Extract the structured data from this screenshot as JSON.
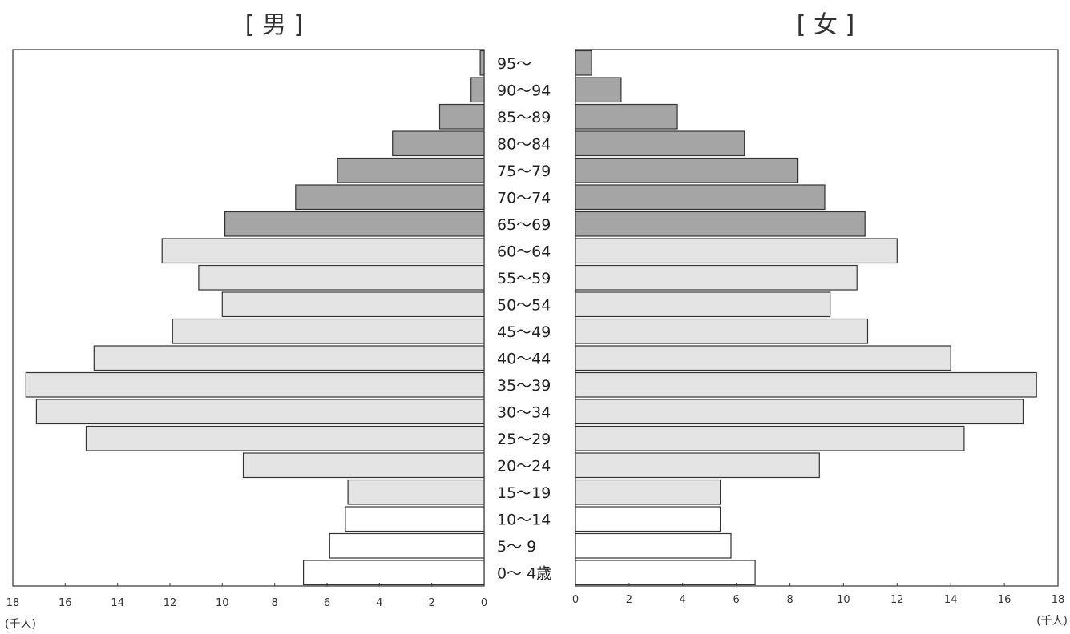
{
  "chart_data": {
    "type": "bar",
    "orientation": "horizontal",
    "subtype": "population-pyramid",
    "unit": "(千人)",
    "xlim": [
      0,
      18
    ],
    "xticks": [
      "0",
      "2",
      "4",
      "6",
      "8",
      "10",
      "12",
      "14",
      "16",
      "18"
    ],
    "categories": [
      "0～ 4歳",
      "5～ 9",
      "10～14",
      "15～19",
      "20～24",
      "25～29",
      "30～34",
      "35～39",
      "40～44",
      "45～49",
      "50～54",
      "55～59",
      "60～64",
      "65～69",
      "70～74",
      "75～79",
      "80～84",
      "85～89",
      "90～94",
      "95～"
    ],
    "series": [
      {
        "name": "[ 男 ]",
        "side": "left",
        "values": [
          6.9,
          5.9,
          5.3,
          5.2,
          9.2,
          15.2,
          17.1,
          17.5,
          14.9,
          11.9,
          10.0,
          10.9,
          12.3,
          9.9,
          7.2,
          5.6,
          3.5,
          1.7,
          0.5,
          0.15
        ]
      },
      {
        "name": "[ 女 ]",
        "side": "right",
        "values": [
          6.7,
          5.8,
          5.4,
          5.4,
          9.1,
          14.5,
          16.7,
          17.2,
          14.0,
          10.9,
          9.5,
          10.5,
          12.0,
          10.8,
          9.3,
          8.3,
          6.3,
          3.8,
          1.7,
          0.6
        ]
      }
    ],
    "colors": {
      "young": "#ffffff",
      "working": "#e4e4e4",
      "elderly": "#a5a5a5",
      "frame": "#333333"
    },
    "grid": false,
    "legend": "none"
  }
}
